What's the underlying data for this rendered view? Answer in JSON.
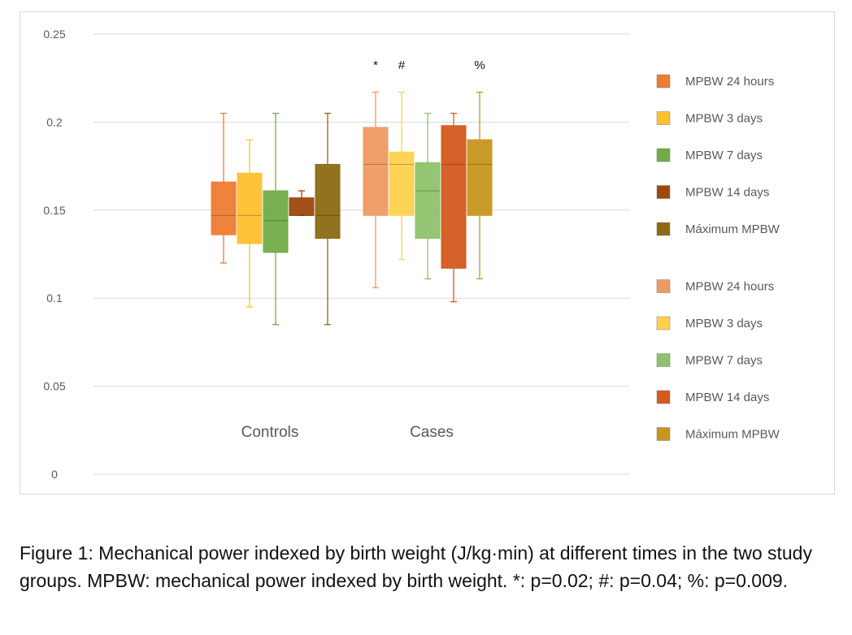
{
  "chart_data": {
    "type": "box",
    "categories": [
      "Controls",
      "Cases"
    ],
    "ylim": [
      0,
      0.25
    ],
    "yticks": [
      0,
      0.05,
      0.1,
      0.15,
      0.2,
      0.25
    ],
    "ytick_labels": [
      "0",
      "0.05",
      "0.1",
      "0.15",
      "0.2",
      "0.25"
    ],
    "grid": true,
    "legend_position": "right",
    "series": [
      {
        "name": "MPBW 24 hours",
        "group": "Controls",
        "color": "#ED7D31",
        "min": 0.12,
        "q1": 0.136,
        "median": 0.147,
        "q3": 0.166,
        "max": 0.205
      },
      {
        "name": "MPBW 3 days",
        "group": "Controls",
        "color": "#FFC02E",
        "min": 0.095,
        "q1": 0.131,
        "median": 0.147,
        "q3": 0.171,
        "max": 0.19
      },
      {
        "name": "MPBW 7 days",
        "group": "Controls",
        "color": "#70AD47",
        "min": 0.085,
        "q1": 0.126,
        "median": 0.144,
        "q3": 0.161,
        "max": 0.205
      },
      {
        "name": "MPBW 14 days",
        "group": "Controls",
        "color": "#9E480E",
        "min": 0.147,
        "q1": 0.147,
        "median": 0.147,
        "q3": 0.157,
        "max": 0.161
      },
      {
        "name": "Máximum MPBW",
        "group": "Controls",
        "color": "#8C6A12",
        "min": 0.085,
        "q1": 0.134,
        "median": 0.147,
        "q3": 0.176,
        "max": 0.205
      },
      {
        "name": "MPBW 24 hours",
        "group": "Cases",
        "color": "#F09A62",
        "min": 0.106,
        "q1": 0.147,
        "median": 0.176,
        "q3": 0.197,
        "max": 0.217
      },
      {
        "name": "MPBW 3 days",
        "group": "Cases",
        "color": "#FFD24D",
        "min": 0.122,
        "q1": 0.147,
        "median": 0.176,
        "q3": 0.183,
        "max": 0.217
      },
      {
        "name": "MPBW 7 days",
        "group": "Cases",
        "color": "#8DC26A",
        "min": 0.111,
        "q1": 0.134,
        "median": 0.161,
        "q3": 0.177,
        "max": 0.205
      },
      {
        "name": "MPBW 14 days",
        "group": "Cases",
        "color": "#D45A1E",
        "min": 0.098,
        "q1": 0.117,
        "median": 0.176,
        "q3": 0.198,
        "max": 0.205
      },
      {
        "name": "Máximum MPBW",
        "group": "Cases",
        "color": "#C8961E",
        "min": 0.111,
        "q1": 0.147,
        "median": 0.176,
        "q3": 0.19,
        "max": 0.217
      }
    ],
    "annotations": [
      {
        "text": "*",
        "series_index": 5
      },
      {
        "text": "#",
        "series_index": 6
      },
      {
        "text": "%",
        "series_index": 9
      }
    ]
  },
  "caption": "Figure 1: Mechanical power indexed by birth weight (J/kg·min) at different times in the two study groups. MPBW: mechanical power indexed by birth weight. *: p=0.02; #: p=0.04; %: p=0.009."
}
